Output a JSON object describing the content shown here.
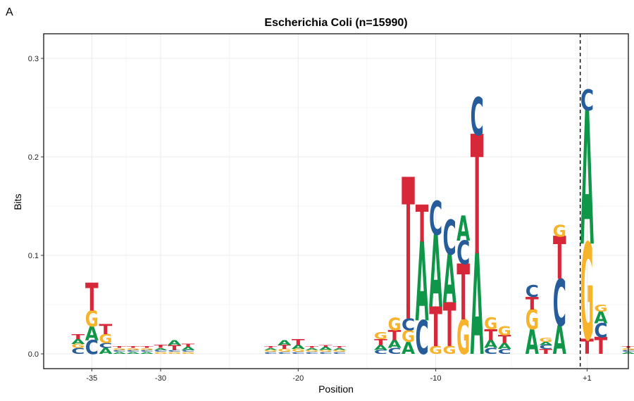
{
  "panel_label": "A",
  "colors": {
    "A": "#109648",
    "C": "#255c99",
    "G": "#f7b32b",
    "T": "#d62839"
  },
  "chart_data": {
    "type": "sequence-logo",
    "title": "Escherichia Coli (n=15990)",
    "xlabel": "Position",
    "ylabel": "Bits",
    "xlim": [
      -38.5,
      4.0
    ],
    "ylim": [
      -0.015,
      0.325
    ],
    "x_ticks": [
      -35,
      -30,
      -20,
      -10,
      1
    ],
    "x_tick_labels": [
      "-35",
      "-30",
      "-20",
      "-10",
      "+1"
    ],
    "y_ticks": [
      0.0,
      0.1,
      0.2,
      0.3
    ],
    "y_tick_labels": [
      "0.0",
      "0.1",
      "0.2",
      "0.3"
    ],
    "reference_line": {
      "x": 0.5,
      "style": "dashed"
    },
    "grid": true,
    "positions": [
      {
        "pos": -36,
        "letters": [
          [
            "C",
            0.006
          ],
          [
            "G",
            0.004
          ],
          [
            "A",
            0.005
          ],
          [
            "T",
            0.005
          ]
        ]
      },
      {
        "pos": -35,
        "letters": [
          [
            "C",
            0.014
          ],
          [
            "A",
            0.014
          ],
          [
            "G",
            0.016
          ],
          [
            "T",
            0.028
          ]
        ]
      },
      {
        "pos": -34,
        "letters": [
          [
            "A",
            0.006
          ],
          [
            "C",
            0.005
          ],
          [
            "G",
            0.009
          ],
          [
            "T",
            0.01
          ]
        ]
      },
      {
        "pos": -33,
        "letters": [
          [
            "A",
            0.002
          ],
          [
            "C",
            0.002
          ],
          [
            "G",
            0.002
          ],
          [
            "T",
            0.002
          ]
        ]
      },
      {
        "pos": -32,
        "letters": [
          [
            "A",
            0.002
          ],
          [
            "C",
            0.002
          ],
          [
            "G",
            0.002
          ],
          [
            "T",
            0.002
          ]
        ]
      },
      {
        "pos": -31,
        "letters": [
          [
            "A",
            0.002
          ],
          [
            "C",
            0.002
          ],
          [
            "G",
            0.002
          ],
          [
            "T",
            0.002
          ]
        ]
      },
      {
        "pos": -30,
        "letters": [
          [
            "G",
            0.002
          ],
          [
            "C",
            0.002
          ],
          [
            "A",
            0.002
          ],
          [
            "T",
            0.003
          ]
        ]
      },
      {
        "pos": -29,
        "letters": [
          [
            "G",
            0.002
          ],
          [
            "C",
            0.002
          ],
          [
            "T",
            0.005
          ],
          [
            "A",
            0.005
          ]
        ]
      },
      {
        "pos": -28,
        "letters": [
          [
            "G",
            0.002
          ],
          [
            "C",
            0.002
          ],
          [
            "A",
            0.003
          ],
          [
            "T",
            0.003
          ]
        ]
      },
      {
        "pos": -22,
        "letters": [
          [
            "C",
            0.002
          ],
          [
            "G",
            0.002
          ],
          [
            "A",
            0.002
          ],
          [
            "T",
            0.002
          ]
        ]
      },
      {
        "pos": -21,
        "letters": [
          [
            "C",
            0.002
          ],
          [
            "G",
            0.003
          ],
          [
            "T",
            0.004
          ],
          [
            "A",
            0.005
          ]
        ]
      },
      {
        "pos": -20,
        "letters": [
          [
            "C",
            0.002
          ],
          [
            "G",
            0.003
          ],
          [
            "A",
            0.004
          ],
          [
            "T",
            0.006
          ]
        ]
      },
      {
        "pos": -19,
        "letters": [
          [
            "C",
            0.002
          ],
          [
            "G",
            0.002
          ],
          [
            "A",
            0.002
          ],
          [
            "T",
            0.002
          ]
        ]
      },
      {
        "pos": -18,
        "letters": [
          [
            "C",
            0.002
          ],
          [
            "G",
            0.002
          ],
          [
            "A",
            0.003
          ],
          [
            "T",
            0.002
          ]
        ]
      },
      {
        "pos": -17,
        "letters": [
          [
            "C",
            0.002
          ],
          [
            "G",
            0.002
          ],
          [
            "A",
            0.002
          ],
          [
            "T",
            0.002
          ]
        ]
      },
      {
        "pos": -14,
        "letters": [
          [
            "C",
            0.004
          ],
          [
            "A",
            0.005
          ],
          [
            "T",
            0.006
          ],
          [
            "G",
            0.007
          ]
        ]
      },
      {
        "pos": -13,
        "letters": [
          [
            "C",
            0.006
          ],
          [
            "A",
            0.008
          ],
          [
            "T",
            0.01
          ],
          [
            "G",
            0.013
          ]
        ]
      },
      {
        "pos": -12,
        "letters": [
          [
            "A",
            0.012
          ],
          [
            "G",
            0.012
          ],
          [
            "C",
            0.012
          ],
          [
            "T",
            0.142
          ]
        ]
      },
      {
        "pos": -11,
        "letters": [
          [
            "C",
            0.034
          ],
          [
            "A",
            0.08
          ],
          [
            "T",
            0.037
          ]
        ]
      },
      {
        "pos": -10,
        "letters": [
          [
            "G",
            0.008
          ],
          [
            "T",
            0.04
          ],
          [
            "A",
            0.073
          ],
          [
            "C",
            0.034
          ]
        ]
      },
      {
        "pos": -9,
        "letters": [
          [
            "G",
            0.008
          ],
          [
            "T",
            0.044
          ],
          [
            "A",
            0.049
          ],
          [
            "C",
            0.035
          ]
        ]
      },
      {
        "pos": -8,
        "letters": [
          [
            "G",
            0.035
          ],
          [
            "T",
            0.056
          ],
          [
            "C",
            0.024
          ],
          [
            "A",
            0.025
          ]
        ]
      },
      {
        "pos": -7,
        "letters": [
          [
            "A",
            0.102
          ],
          [
            "T",
            0.12
          ],
          [
            "C",
            0.038
          ]
        ]
      },
      {
        "pos": -6,
        "letters": [
          [
            "C",
            0.006
          ],
          [
            "A",
            0.008
          ],
          [
            "T",
            0.011
          ],
          [
            "G",
            0.012
          ]
        ]
      },
      {
        "pos": -5,
        "letters": [
          [
            "C",
            0.005
          ],
          [
            "A",
            0.006
          ],
          [
            "T",
            0.008
          ],
          [
            "G",
            0.009
          ]
        ]
      },
      {
        "pos": -3,
        "letters": [
          [
            "A",
            0.025
          ],
          [
            "G",
            0.02
          ],
          [
            "T",
            0.013
          ],
          [
            "C",
            0.012
          ]
        ]
      },
      {
        "pos": -2,
        "letters": [
          [
            "T",
            0.005
          ],
          [
            "C",
            0.004
          ],
          [
            "A",
            0.003
          ],
          [
            "G",
            0.004
          ]
        ]
      },
      {
        "pos": -1,
        "letters": [
          [
            "A",
            0.029
          ],
          [
            "C",
            0.047
          ],
          [
            "T",
            0.043
          ],
          [
            "G",
            0.012
          ]
        ]
      },
      {
        "pos": 1,
        "letters": [
          [
            "T",
            0.015
          ],
          [
            "G",
            0.097
          ],
          [
            "A",
            0.135
          ],
          [
            "C",
            0.021
          ]
        ]
      },
      {
        "pos": 2,
        "letters": [
          [
            "T",
            0.017
          ],
          [
            "C",
            0.014
          ],
          [
            "A",
            0.012
          ],
          [
            "G",
            0.007
          ]
        ]
      },
      {
        "pos": 4,
        "letters": [
          [
            "A",
            0.002
          ],
          [
            "C",
            0.002
          ],
          [
            "G",
            0.002
          ],
          [
            "T",
            0.002
          ]
        ]
      }
    ]
  }
}
